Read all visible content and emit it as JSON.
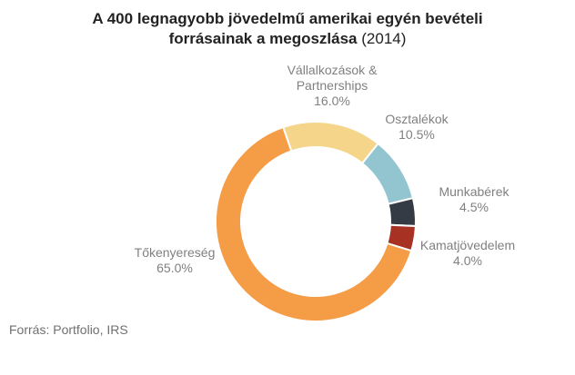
{
  "chart_data": {
    "type": "pie",
    "title_line1": "A 400 legnagyobb jövedelmű amerikai egyén bevételi",
    "title_line2_bold": "forrásainak a megoszlása",
    "title_line2_normal": " (2014)",
    "slices": [
      {
        "id": "vallalkozasok",
        "label_lines": [
          "Vállalkozások &",
          "Partnerships"
        ],
        "value": 16.0,
        "value_label": "16.0%",
        "color": "#f5d58a"
      },
      {
        "id": "osztalekok",
        "label_lines": [
          "Osztalékok"
        ],
        "value": 10.5,
        "value_label": "10.5%",
        "color": "#92c5cf"
      },
      {
        "id": "munkaberek",
        "label_lines": [
          "Munkabérek"
        ],
        "value": 4.5,
        "value_label": "4.5%",
        "color": "#353b45"
      },
      {
        "id": "kamatjovedelem",
        "label_lines": [
          "Kamatjövedelem"
        ],
        "value": 4.0,
        "value_label": "4.0%",
        "color": "#a73224"
      },
      {
        "id": "tokenyereseg",
        "label_lines": [
          "Tőkenyereség"
        ],
        "value": 65.0,
        "value_label": "65.0%",
        "color": "#f59c47"
      }
    ],
    "source": "Forrás: Portfolio, IRS"
  }
}
